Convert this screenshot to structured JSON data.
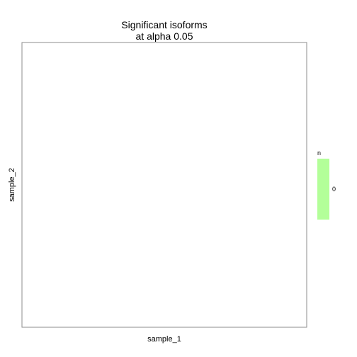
{
  "chart_data": {
    "type": "heatmap",
    "title": "Significant isoforms",
    "subtitle": "at alpha 0.05",
    "xlabel": "sample_1",
    "ylabel": "sample_2",
    "cells": [],
    "legend": {
      "title": "n",
      "placement": "right",
      "entries": [
        {
          "label": "0",
          "value": 0,
          "color": "#b3ff99"
        }
      ]
    },
    "grid": false,
    "panel_border_color": "#8c8c8c",
    "background_color": "#ffffff"
  }
}
